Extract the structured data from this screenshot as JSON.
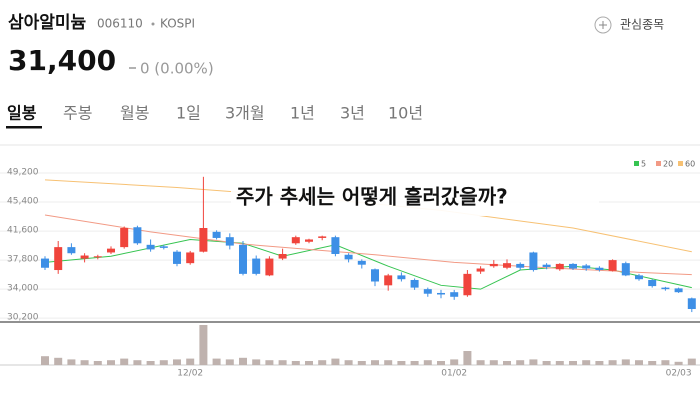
{
  "header": {
    "name": "삼아알미늄",
    "code": "006110",
    "market": "KOSPI",
    "watch": "관심종목",
    "price": "31,400",
    "change": "0 (0.00%)"
  },
  "tabs": [
    "일봉",
    "주봉",
    "월봉",
    "1일",
    "3개월",
    "1년",
    "3년",
    "10년"
  ],
  "chart_data": {
    "type": "candlestick",
    "title": "주가 추세는 어떻게 흘러갔을까?",
    "categories": [
      null,
      null,
      null,
      null,
      null,
      null,
      null,
      null,
      null,
      null,
      null,
      "12/02",
      null,
      null,
      null,
      null,
      null,
      null,
      null,
      null,
      null,
      null,
      null,
      null,
      null,
      null,
      null,
      null,
      null,
      null,
      null,
      "01/02",
      null,
      null,
      null,
      null,
      null,
      null,
      null,
      null,
      null,
      null,
      null,
      null,
      null,
      null,
      null,
      null,
      "02/03",
      null
    ],
    "open": [
      38000,
      36500,
      39500,
      38000,
      38200,
      38800,
      39500,
      42100,
      39800,
      39600,
      38900,
      37400,
      38900,
      41500,
      40800,
      39800,
      38000,
      35800,
      38000,
      40000,
      40200,
      40700,
      40800,
      38500,
      37700,
      36600,
      34500,
      35800,
      35200,
      34000,
      33500,
      33600,
      33200,
      36300,
      37000,
      36800,
      37300,
      38800,
      37200,
      36600,
      37300,
      37100,
      36800,
      36400,
      37400,
      35800,
      35200,
      34200,
      34100,
      32800
    ],
    "high": [
      38300,
      40300,
      40000,
      38700,
      38500,
      39600,
      42200,
      42300,
      40500,
      39800,
      39100,
      39000,
      48700,
      41700,
      41300,
      40300,
      38400,
      38300,
      39300,
      41000,
      40600,
      41000,
      41000,
      38700,
      37900,
      36700,
      36000,
      36200,
      35400,
      34200,
      33900,
      33900,
      36500,
      37000,
      37800,
      37900,
      37500,
      38900,
      37400,
      37400,
      37400,
      37300,
      37000,
      37900,
      37600,
      36000,
      35300,
      34300,
      34200,
      32900
    ],
    "low": [
      36500,
      36000,
      38500,
      37500,
      37900,
      38600,
      39300,
      39800,
      38900,
      39200,
      37000,
      37200,
      38800,
      40500,
      39200,
      35800,
      35800,
      35700,
      37800,
      39800,
      40000,
      40400,
      38300,
      37500,
      36700,
      34400,
      33800,
      35000,
      33900,
      33000,
      32800,
      32600,
      33000,
      36000,
      36800,
      36600,
      36500,
      36300,
      36600,
      36400,
      36500,
      36400,
      36300,
      36300,
      35700,
      35100,
      34200,
      33800,
      33500,
      31000
    ],
    "close": [
      36800,
      39500,
      38700,
      38400,
      38300,
      39300,
      42000,
      40000,
      39200,
      39400,
      37300,
      38800,
      42000,
      40700,
      39700,
      36000,
      36000,
      38000,
      38600,
      40800,
      40500,
      40900,
      38600,
      37900,
      37200,
      35000,
      35800,
      35300,
      34200,
      33400,
      33300,
      33000,
      36000,
      36700,
      37300,
      37400,
      36800,
      36500,
      36900,
      37300,
      36700,
      36700,
      36500,
      37800,
      35800,
      35300,
      34400,
      34000,
      33600,
      31400
    ],
    "up_color": "#f0443c",
    "down_color": "#3d8fe6",
    "ylim": [
      29700,
      50900
    ],
    "yticks": [
      {
        "value": 30200,
        "label": "30,200"
      },
      {
        "value": 34000,
        "label": "34,000"
      },
      {
        "value": 37800,
        "label": "37,800"
      },
      {
        "value": 41600,
        "label": "41,600"
      },
      {
        "value": 45400,
        "label": "45,400"
      },
      {
        "value": 49200,
        "label": "49,200"
      }
    ],
    "grid": true,
    "moving_averages": [
      {
        "name": "5",
        "color": "#36c451",
        "x": [
          0,
          5,
          11,
          15,
          18,
          22,
          26,
          30,
          33,
          36,
          40,
          43,
          49
        ],
        "values": [
          37500,
          38300,
          40500,
          40000,
          38300,
          39800,
          37000,
          34500,
          34000,
          36500,
          37000,
          36500,
          34200
        ]
      },
      {
        "name": "20",
        "color": "#f29a85",
        "x": [
          0,
          8,
          15,
          25,
          31,
          38,
          45,
          49
        ],
        "values": [
          43700,
          41500,
          39900,
          38500,
          37500,
          36800,
          36200,
          35900
        ]
      },
      {
        "name": "60",
        "color": "#f7c173",
        "x": [
          0,
          10,
          20,
          30,
          40,
          49
        ],
        "values": [
          48300,
          47300,
          46000,
          44300,
          42000,
          38900
        ]
      }
    ],
    "volume": {
      "color": "#bfb2ae",
      "ylim": [
        0,
        100
      ],
      "values": [
        22,
        18,
        14,
        12,
        10,
        12,
        16,
        12,
        10,
        12,
        14,
        16,
        100,
        16,
        14,
        18,
        14,
        12,
        12,
        10,
        10,
        12,
        16,
        12,
        10,
        12,
        12,
        10,
        10,
        12,
        10,
        14,
        35,
        12,
        12,
        10,
        12,
        14,
        10,
        10,
        10,
        12,
        10,
        12,
        14,
        12,
        10,
        12,
        8,
        16
      ]
    }
  }
}
